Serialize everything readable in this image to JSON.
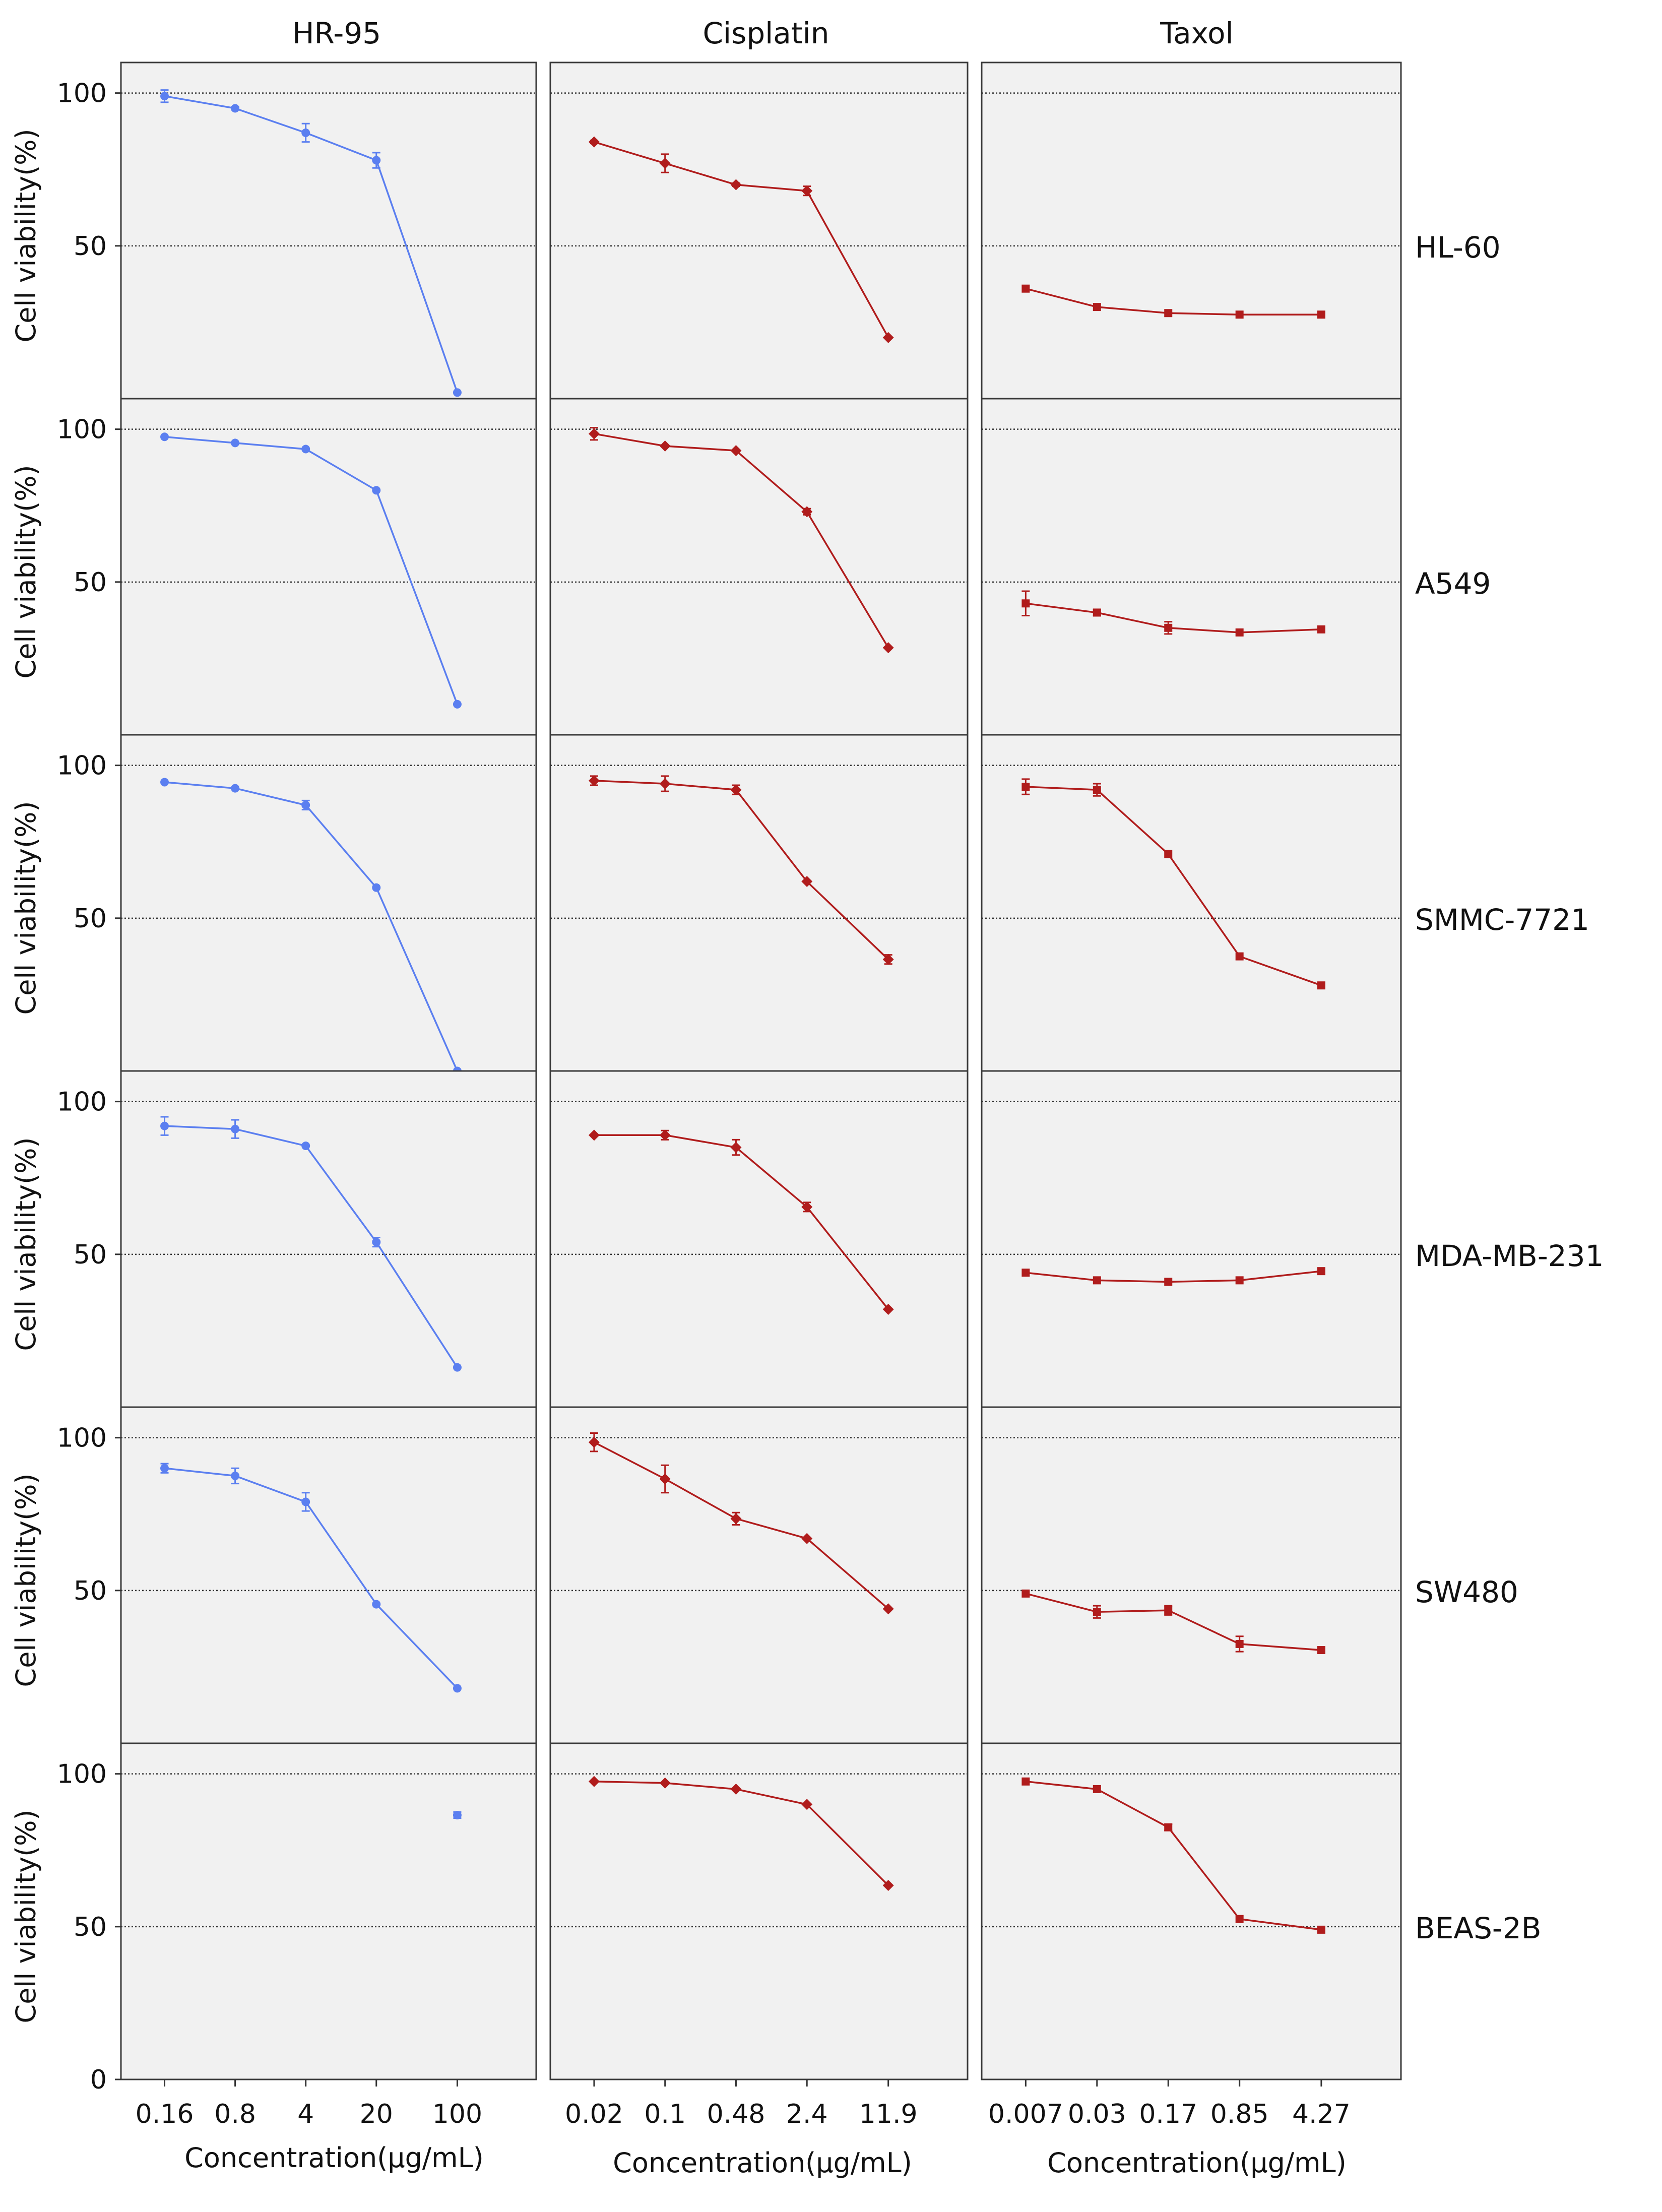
{
  "chart_data": {
    "type": "line",
    "title": "",
    "layout": "6 rows x 3 columns small multiples",
    "ylabel": "Cell viability(%)",
    "ylim": [
      0,
      110
    ],
    "yticks": [
      0,
      50,
      100
    ],
    "grid": "dashed horizontal at 50 and 100",
    "columns": [
      {
        "name": "HR-95",
        "xlabel": "Concentration(μg/mL)",
        "x": [
          "0.16",
          "0.8",
          "4",
          "20",
          "100"
        ],
        "color": "#5b7ff0",
        "marker": "circle"
      },
      {
        "name": "Cisplatin",
        "xlabel": "Concentration(μg/mL)",
        "x": [
          "0.02",
          "0.1",
          "0.48",
          "2.4",
          "11.9"
        ],
        "color": "#b01c1c",
        "marker": "diamond"
      },
      {
        "name": "Taxol",
        "xlabel": "Concentration(μg/mL)",
        "x": [
          "0.007",
          "0.03",
          "0.17",
          "0.85",
          "4.27"
        ],
        "color": "#b01c1c",
        "marker": "square"
      }
    ],
    "rows": [
      {
        "name": "HL-60",
        "series": [
          {
            "values": [
              99,
              95,
              87,
              78,
              2
            ],
            "errors": [
              2,
              0.5,
              3,
              2.5,
              0
            ]
          },
          {
            "values": [
              84,
              77,
              70,
              68,
              20
            ],
            "errors": [
              0.5,
              3,
              0.5,
              1.5,
              0
            ]
          },
          {
            "values": [
              36,
              30,
              28,
              27.5,
              27.5
            ],
            "errors": [
              0,
              0,
              0,
              0,
              0
            ]
          }
        ]
      },
      {
        "name": "A549",
        "series": [
          {
            "values": [
              97.5,
              95.5,
              93.5,
              80,
              10
            ],
            "errors": [
              0,
              0,
              0,
              0,
              0
            ]
          },
          {
            "values": [
              98.5,
              94.5,
              93,
              73,
              28.5
            ],
            "errors": [
              2,
              0,
              0,
              1,
              0
            ]
          },
          {
            "values": [
              43,
              40,
              35,
              33.5,
              34.5
            ],
            "errors": [
              4,
              1,
              2,
              0,
              0
            ]
          }
        ]
      },
      {
        "name": "SMMC-7721",
        "series": [
          {
            "values": [
              94.5,
              92.5,
              87,
              60,
              0
            ],
            "errors": [
              0,
              0,
              1.5,
              0,
              0
            ]
          },
          {
            "values": [
              95,
              94,
              92,
              62,
              36.5
            ],
            "errors": [
              1.5,
              2.5,
              1.5,
              0,
              1.5
            ]
          },
          {
            "values": [
              93,
              92,
              71,
              37.5,
              28
            ],
            "errors": [
              2.5,
              2,
              0,
              0,
              0
            ]
          }
        ]
      },
      {
        "name": "MDA-MB-231",
        "series": [
          {
            "values": [
              92,
              91,
              85.5,
              54,
              13
            ],
            "errors": [
              3,
              3,
              0,
              1.5,
              0
            ]
          },
          {
            "values": [
              89,
              89,
              85,
              65.5,
              32
            ],
            "errors": [
              0,
              1.5,
              2.5,
              1.5,
              0
            ]
          },
          {
            "values": [
              44,
              41.5,
              41,
              41.5,
              44.5
            ],
            "errors": [
              0,
              0,
              0,
              0,
              0
            ]
          }
        ]
      },
      {
        "name": "SW480",
        "series": [
          {
            "values": [
              90,
              87.5,
              79,
              45.5,
              18
            ],
            "errors": [
              1.5,
              2.5,
              3,
              0,
              0
            ]
          },
          {
            "values": [
              98.5,
              86.5,
              73.5,
              67,
              44
            ],
            "errors": [
              3,
              4.5,
              2,
              0,
              0
            ]
          },
          {
            "values": [
              49,
              43,
              43.5,
              32.5,
              30.5
            ],
            "errors": [
              0,
              2,
              1.5,
              2.5,
              0
            ]
          }
        ]
      },
      {
        "name": "BEAS-2B",
        "series": [
          {
            "values": [
              null,
              null,
              null,
              null,
              86.5
            ],
            "errors": [
              0,
              0,
              0,
              0,
              1
            ]
          },
          {
            "values": [
              97.5,
              97,
              95,
              90,
              63.5
            ],
            "errors": [
              0,
              0,
              0,
              0,
              0
            ]
          },
          {
            "values": [
              97.5,
              95,
              82.5,
              52.5,
              49
            ],
            "errors": [
              0,
              0,
              1,
              0,
              0
            ]
          }
        ]
      }
    ]
  }
}
